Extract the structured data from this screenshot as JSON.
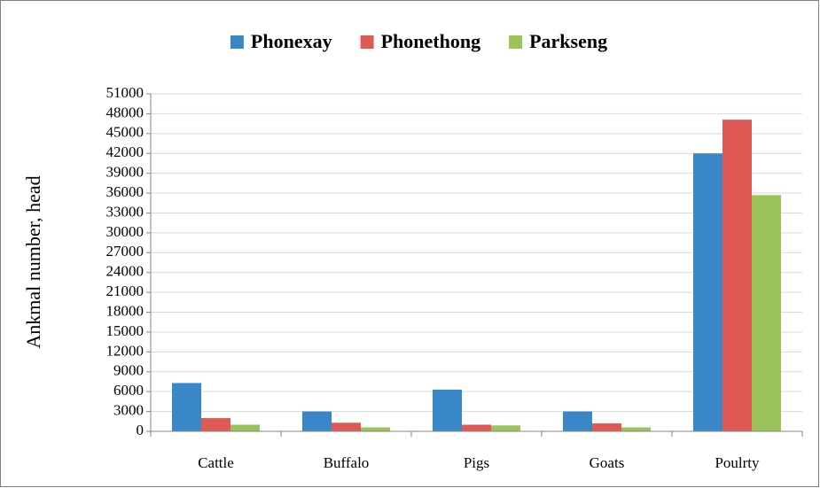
{
  "chart_data": {
    "type": "bar",
    "ylabel": "Ankmal number, head",
    "categories": [
      "Cattle",
      "Buffalo",
      "Pigs",
      "Goats",
      "Poulrty"
    ],
    "series": [
      {
        "name": "Phonexay",
        "color": "#3a87c8",
        "values": [
          7300,
          3000,
          6300,
          3000,
          42000
        ]
      },
      {
        "name": "Phonethong",
        "color": "#e05a55",
        "values": [
          2000,
          1300,
          1000,
          1200,
          47100
        ]
      },
      {
        "name": "Parkseng",
        "color": "#9bc35a",
        "values": [
          1000,
          600,
          900,
          600,
          35700
        ]
      }
    ],
    "ylim": [
      0,
      51000
    ],
    "yticks": [
      0,
      3000,
      6000,
      9000,
      12000,
      15000,
      18000,
      21000,
      24000,
      27000,
      30000,
      33000,
      36000,
      39000,
      42000,
      45000,
      48000,
      51000
    ],
    "grid": true,
    "legend": "top"
  }
}
